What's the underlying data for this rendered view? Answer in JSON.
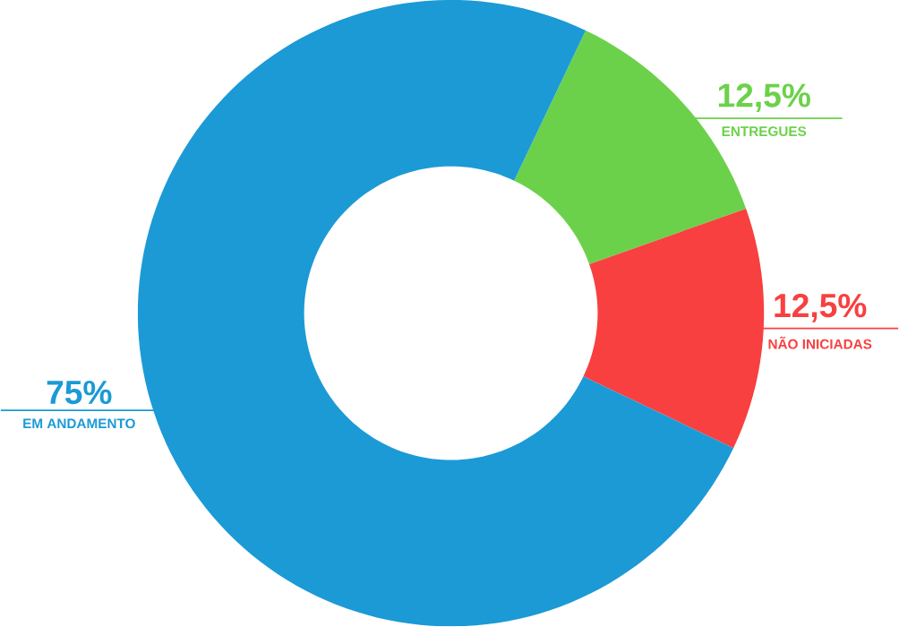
{
  "chart_data": {
    "type": "donut",
    "categories": [
      "ENTREGUES",
      "NÃO INICIADAS",
      "EM ANDAMENTO"
    ],
    "values": [
      12.5,
      12.5,
      75
    ],
    "value_labels": [
      "12,5%",
      "12,5%",
      "75%"
    ],
    "colors": [
      "#6cd14a",
      "#f84040",
      "#1b9ad6"
    ]
  }
}
